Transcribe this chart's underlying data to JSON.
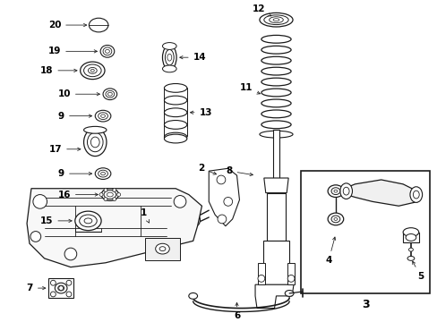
{
  "bg_color": "#ffffff",
  "line_color": "#1a1a1a",
  "fig_width": 4.89,
  "fig_height": 3.6,
  "dpi": 100,
  "label_fontsize": 7.5,
  "arrow_lw": 0.55,
  "part_lw": 0.7
}
